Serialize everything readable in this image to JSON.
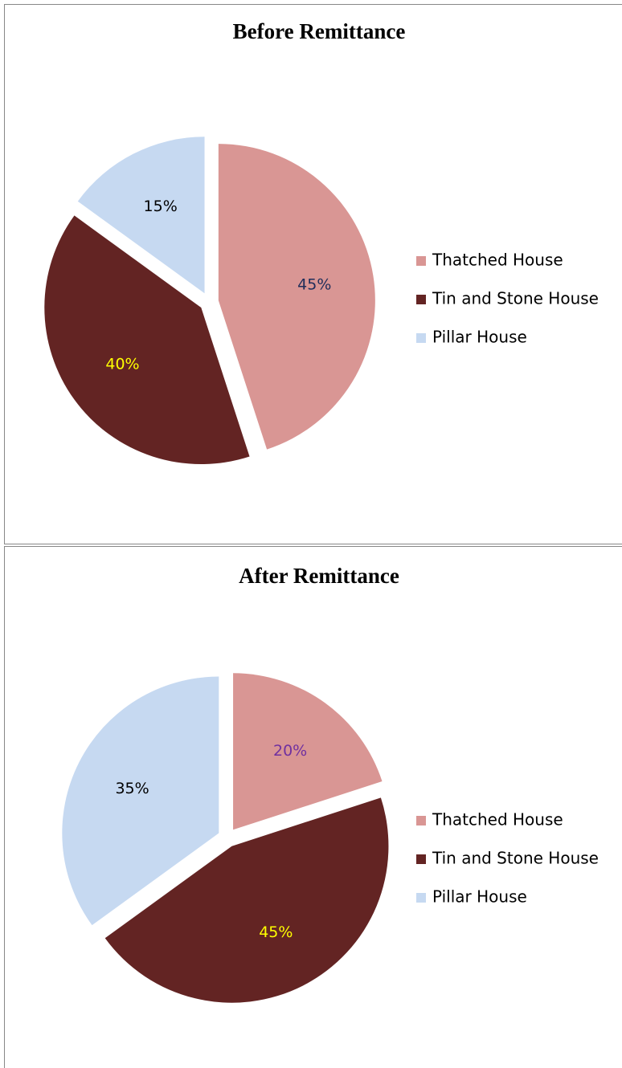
{
  "chart_data": [
    {
      "type": "pie",
      "title": "Before Remittance",
      "categories": [
        "Thatched House",
        "Tin and Stone House",
        "Pillar House"
      ],
      "values": [
        45,
        40,
        15
      ],
      "value_labels": [
        "45%",
        "40%",
        "15%"
      ],
      "colors": [
        "#d99694",
        "#632423",
        "#c6d9f1"
      ],
      "label_colors": [
        "#1f2d5a",
        "#ffff00",
        "#000000"
      ]
    },
    {
      "type": "pie",
      "title": "After Remittance",
      "categories": [
        "Thatched House",
        "Tin and Stone House",
        "Pillar House"
      ],
      "values": [
        20,
        45,
        35
      ],
      "value_labels": [
        "20%",
        "45%",
        "35%"
      ],
      "colors": [
        "#d99694",
        "#632423",
        "#c6d9f1"
      ],
      "label_colors": [
        "#7030a0",
        "#ffff00",
        "#000000"
      ]
    }
  ]
}
